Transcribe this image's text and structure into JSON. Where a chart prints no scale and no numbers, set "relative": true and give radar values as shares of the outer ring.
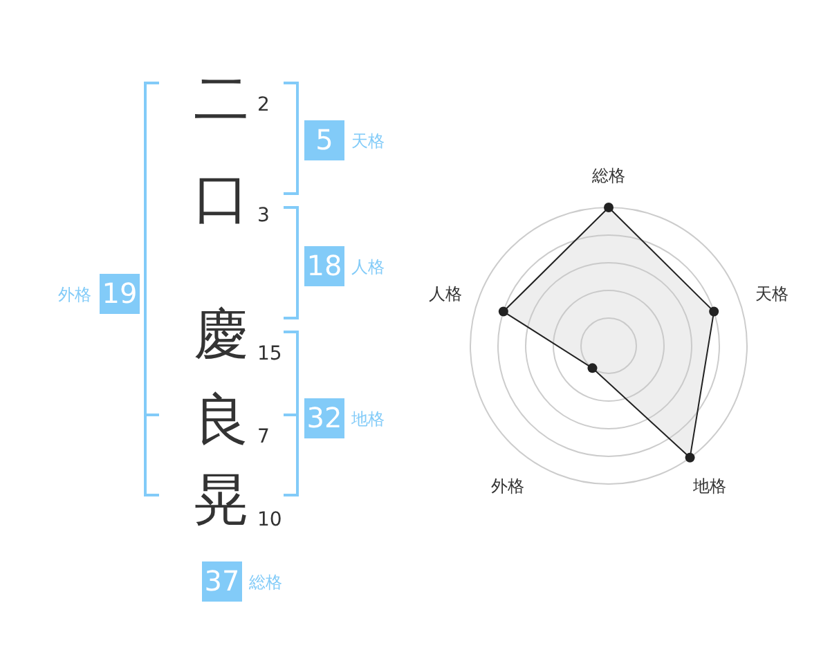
{
  "chart_data": [
    {
      "type": "other",
      "categories": [
        "二",
        "口",
        "慶",
        "良",
        "晃"
      ],
      "annotations": [
        "2",
        "3",
        "15",
        "7",
        "10",
        "5",
        "天格",
        "18",
        "人格",
        "32",
        "地格",
        "19",
        "外格",
        "37",
        "総格"
      ]
    },
    {
      "type": "radar",
      "relative": true,
      "categories": [
        "総格",
        "天格",
        "地格",
        "外格",
        "人格"
      ],
      "series": [
        {
          "color": "#222222",
          "values": [
            1,
            0.8,
            1,
            0.2,
            0.8
          ]
        }
      ],
      "marker": "circle"
    }
  ]
}
